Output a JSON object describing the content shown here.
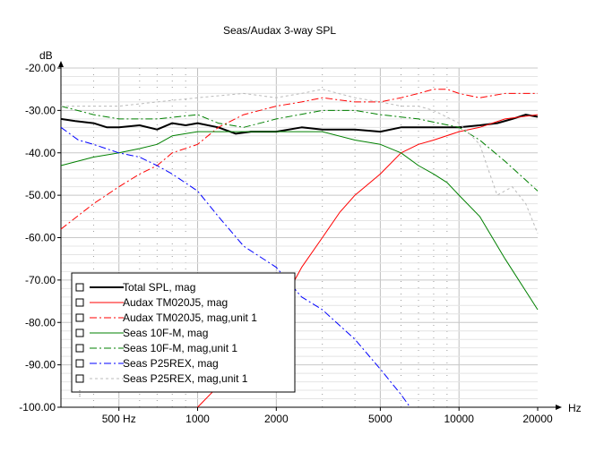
{
  "chart_data": {
    "type": "line",
    "title": "Seas/Audax 3-way SPL",
    "ylabel": "dB",
    "xlabel": "Hz",
    "xscale": "log",
    "xlim": [
      300,
      20000
    ],
    "ylim": [
      -100,
      -20
    ],
    "x_ticks": [
      {
        "value": 500,
        "label": "500 Hz"
      },
      {
        "value": 1000,
        "label": "1000"
      },
      {
        "value": 2000,
        "label": "2000"
      },
      {
        "value": 5000,
        "label": "5000"
      },
      {
        "value": 10000,
        "label": "10000"
      },
      {
        "value": 20000,
        "label": "20000"
      }
    ],
    "y_ticks": [
      {
        "value": -20,
        "label": "-20.00"
      },
      {
        "value": -30,
        "label": "-30.00"
      },
      {
        "value": -40,
        "label": "-40.00"
      },
      {
        "value": -50,
        "label": "-50.00"
      },
      {
        "value": -60,
        "label": "-60.00"
      },
      {
        "value": -70,
        "label": "-70.00"
      },
      {
        "value": -80,
        "label": "-80.00"
      },
      {
        "value": -90,
        "label": "-90.00"
      },
      {
        "value": -100,
        "label": "-100.00"
      }
    ],
    "grid": true,
    "legend_position": "bottom-left",
    "series": [
      {
        "name": "Total SPL, mag",
        "color": "#000000",
        "width": 2,
        "dash": "",
        "points": [
          [
            300,
            -32
          ],
          [
            340,
            -32.5
          ],
          [
            400,
            -33
          ],
          [
            450,
            -34
          ],
          [
            500,
            -34
          ],
          [
            600,
            -33.5
          ],
          [
            700,
            -34.5
          ],
          [
            800,
            -33
          ],
          [
            900,
            -33.5
          ],
          [
            1000,
            -33
          ],
          [
            1200,
            -34
          ],
          [
            1400,
            -35.5
          ],
          [
            1600,
            -35
          ],
          [
            2000,
            -35
          ],
          [
            2500,
            -34
          ],
          [
            3000,
            -34.5
          ],
          [
            4000,
            -34.5
          ],
          [
            5000,
            -35
          ],
          [
            6000,
            -34
          ],
          [
            7000,
            -34
          ],
          [
            8000,
            -34
          ],
          [
            10000,
            -34
          ],
          [
            12000,
            -33.5
          ],
          [
            14000,
            -33
          ],
          [
            16000,
            -32
          ],
          [
            18000,
            -31
          ],
          [
            20000,
            -31.5
          ]
        ]
      },
      {
        "name": "Audax TM020J5, mag",
        "color": "#ff0000",
        "width": 1,
        "dash": "",
        "points": [
          [
            1000,
            -100
          ],
          [
            1200,
            -95
          ],
          [
            1500,
            -88
          ],
          [
            2000,
            -78
          ],
          [
            2500,
            -67
          ],
          [
            3000,
            -60
          ],
          [
            3500,
            -54
          ],
          [
            4000,
            -50
          ],
          [
            5000,
            -45
          ],
          [
            6000,
            -40
          ],
          [
            7000,
            -38
          ],
          [
            8000,
            -37
          ],
          [
            10000,
            -35
          ],
          [
            12000,
            -34
          ],
          [
            15000,
            -32
          ],
          [
            20000,
            -31
          ]
        ]
      },
      {
        "name": "Audax TM020J5, mag,unit 1",
        "color": "#ff0000",
        "width": 1,
        "dash": "8,3,2,3",
        "points": [
          [
            300,
            -58
          ],
          [
            400,
            -52
          ],
          [
            500,
            -48
          ],
          [
            600,
            -45
          ],
          [
            700,
            -43
          ],
          [
            800,
            -40
          ],
          [
            1000,
            -38
          ],
          [
            1200,
            -34
          ],
          [
            1500,
            -31
          ],
          [
            2000,
            -29
          ],
          [
            2500,
            -28
          ],
          [
            3000,
            -27
          ],
          [
            4000,
            -28
          ],
          [
            5000,
            -28
          ],
          [
            6000,
            -27
          ],
          [
            7000,
            -26
          ],
          [
            8000,
            -25
          ],
          [
            9000,
            -25
          ],
          [
            10000,
            -26
          ],
          [
            12000,
            -27
          ],
          [
            15000,
            -26
          ],
          [
            20000,
            -26
          ]
        ]
      },
      {
        "name": "Seas 10F-M, mag",
        "color": "#008000",
        "width": 1,
        "dash": "",
        "points": [
          [
            300,
            -43
          ],
          [
            400,
            -41
          ],
          [
            500,
            -40
          ],
          [
            600,
            -39
          ],
          [
            700,
            -38
          ],
          [
            800,
            -36
          ],
          [
            1000,
            -35
          ],
          [
            1200,
            -35
          ],
          [
            1500,
            -35
          ],
          [
            2000,
            -35
          ],
          [
            3000,
            -35
          ],
          [
            4000,
            -37
          ],
          [
            5000,
            -38
          ],
          [
            6000,
            -40
          ],
          [
            7000,
            -43
          ],
          [
            8000,
            -45
          ],
          [
            9000,
            -47
          ],
          [
            10000,
            -50
          ],
          [
            12000,
            -55
          ],
          [
            15000,
            -65
          ],
          [
            20000,
            -77
          ]
        ]
      },
      {
        "name": "Seas 10F-M, mag,unit 1",
        "color": "#008000",
        "width": 1,
        "dash": "8,3,2,3",
        "points": [
          [
            300,
            -29
          ],
          [
            400,
            -31
          ],
          [
            500,
            -32
          ],
          [
            700,
            -32
          ],
          [
            1000,
            -31
          ],
          [
            1200,
            -33
          ],
          [
            1500,
            -34
          ],
          [
            2000,
            -32
          ],
          [
            3000,
            -30
          ],
          [
            4000,
            -30
          ],
          [
            5000,
            -31
          ],
          [
            7000,
            -32
          ],
          [
            10000,
            -34
          ],
          [
            12000,
            -37
          ],
          [
            15000,
            -42
          ],
          [
            20000,
            -49
          ]
        ]
      },
      {
        "name": "Seas P25REX, mag",
        "color": "#0000ff",
        "width": 1,
        "dash": "8,3,2,3",
        "points": [
          [
            300,
            -34
          ],
          [
            350,
            -37
          ],
          [
            400,
            -38
          ],
          [
            500,
            -40
          ],
          [
            600,
            -41
          ],
          [
            700,
            -43
          ],
          [
            800,
            -45
          ],
          [
            1000,
            -49
          ],
          [
            1200,
            -55
          ],
          [
            1500,
            -62
          ],
          [
            2000,
            -67
          ],
          [
            2500,
            -74
          ],
          [
            3000,
            -77
          ],
          [
            4000,
            -84
          ],
          [
            5000,
            -91
          ],
          [
            6000,
            -97
          ],
          [
            6500,
            -100
          ]
        ]
      },
      {
        "name": "Seas P25REX, mag,unit 1",
        "color": "#bbbbbb",
        "width": 1,
        "dash": "3,3",
        "points": [
          [
            300,
            -29
          ],
          [
            500,
            -29
          ],
          [
            700,
            -28
          ],
          [
            1000,
            -27
          ],
          [
            1500,
            -26
          ],
          [
            2000,
            -27
          ],
          [
            2500,
            -26
          ],
          [
            3000,
            -25
          ],
          [
            4000,
            -27
          ],
          [
            5000,
            -28
          ],
          [
            6000,
            -29
          ],
          [
            7000,
            -29
          ],
          [
            8000,
            -30
          ],
          [
            10000,
            -33
          ],
          [
            12000,
            -38
          ],
          [
            14000,
            -50
          ],
          [
            16000,
            -48
          ],
          [
            18000,
            -52
          ],
          [
            20000,
            -59
          ]
        ]
      }
    ]
  }
}
